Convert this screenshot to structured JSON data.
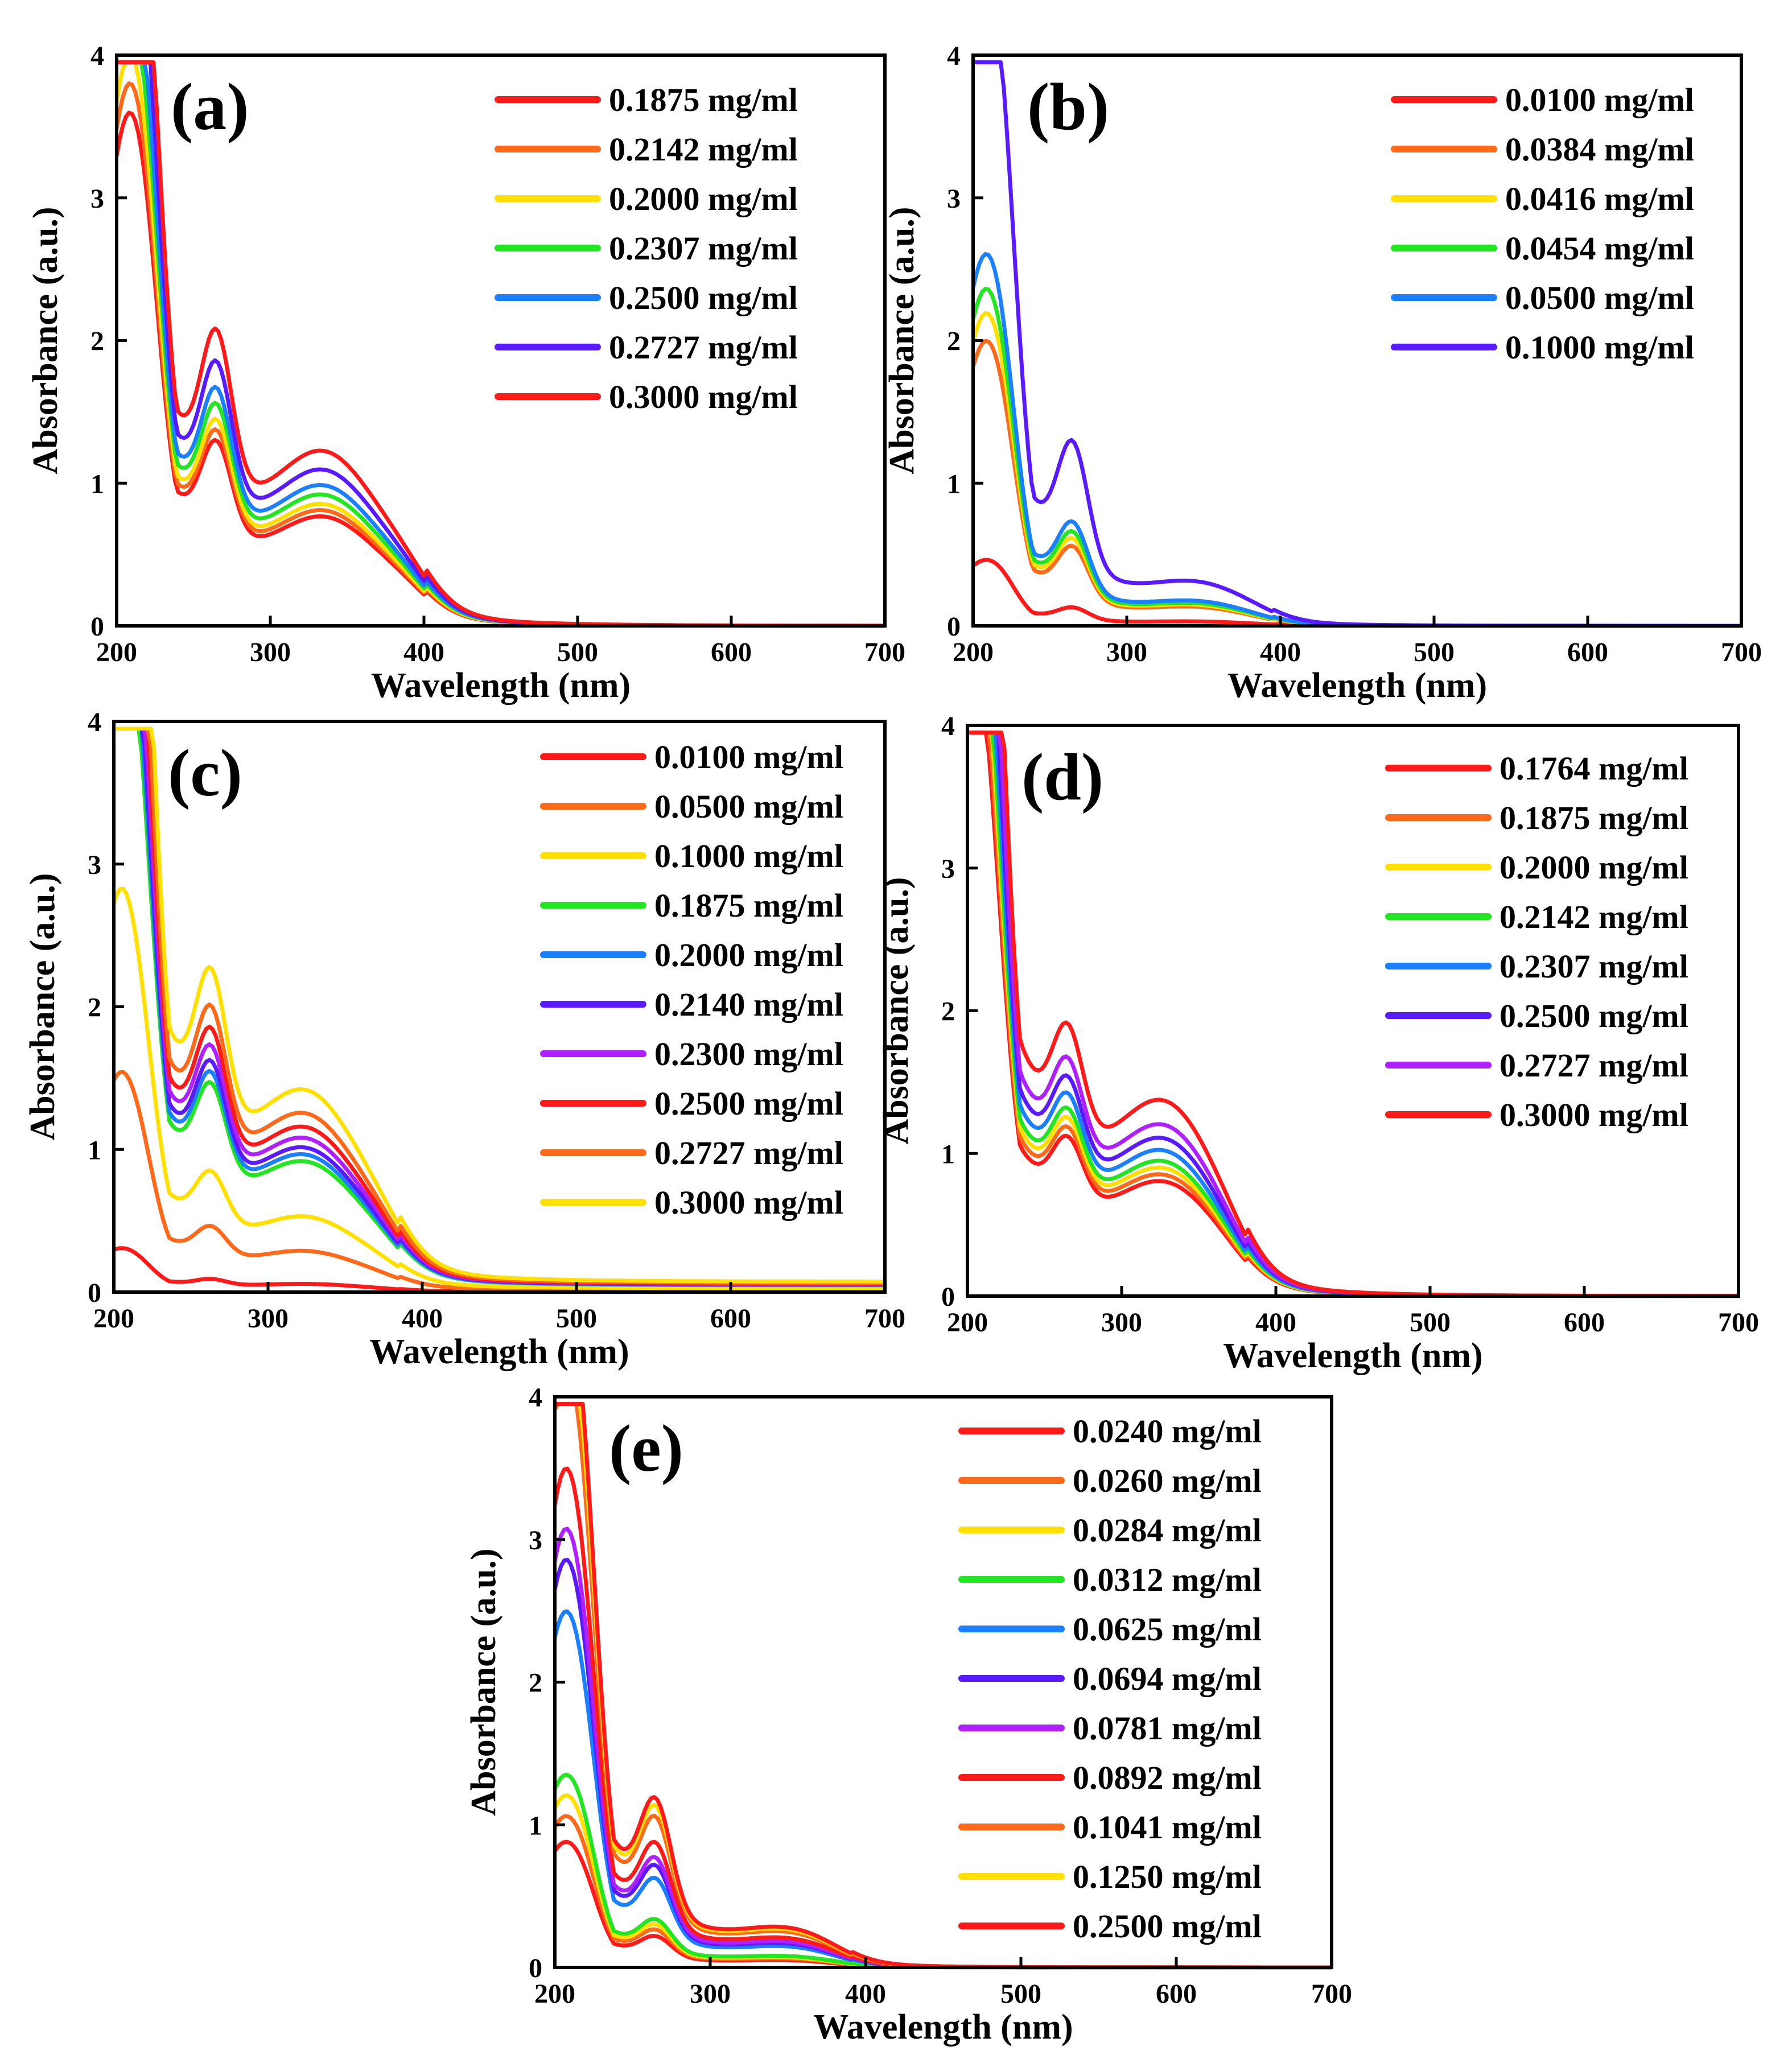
{
  "chart_data": [
    {
      "type": "line",
      "panel_label": "(a)",
      "xlabel": "Wavelength (nm)",
      "ylabel": "Absorbance (a.u.)",
      "xlim": [
        200,
        700
      ],
      "ylim": [
        0,
        4
      ],
      "xticks": [
        200,
        300,
        400,
        500,
        600,
        700
      ],
      "yticks": [
        0,
        1,
        2,
        3,
        4
      ],
      "legend_position": "top-right",
      "series": [
        {
          "name": "0.1875 mg/ml",
          "color": "#ff1a1a",
          "scale": 0.7
        },
        {
          "name": "0.2142 mg/ml",
          "color": "#ff6a1a",
          "scale": 0.74
        },
        {
          "name": "0.2000 mg/ml",
          "color": "#ffe000",
          "scale": 0.78
        },
        {
          "name": "0.2307 mg/ml",
          "color": "#22e622",
          "scale": 0.84
        },
        {
          "name": "0.2500 mg/ml",
          "color": "#1a80ff",
          "scale": 0.9
        },
        {
          "name": "0.2727 mg/ml",
          "color": "#5a1aff",
          "scale": 1.0
        },
        {
          "name": "0.3000 mg/ml",
          "color": "#ff1a1a",
          "scale": 1.12
        }
      ],
      "profile": {
        "peak": 3.97,
        "peak_x": 213,
        "shoulder": 2.05,
        "shoulder_x": 265,
        "band": 1.25,
        "band_x": 335,
        "edge": 400,
        "saturate": true
      }
    },
    {
      "type": "line",
      "panel_label": "(b)",
      "xlabel": "Wavelength (nm)",
      "ylabel": "Absorbance (a.u.)",
      "xlim": [
        200,
        700
      ],
      "ylim": [
        0,
        4
      ],
      "xticks": [
        200,
        300,
        400,
        500,
        600,
        700
      ],
      "yticks": [
        0,
        1,
        2,
        3,
        4
      ],
      "legend_position": "top-right",
      "series": [
        {
          "name": "0.0100 mg/ml",
          "color": "#ff1a1a",
          "scale": 0.19
        },
        {
          "name": "0.0384 mg/ml",
          "color": "#ff6a1a",
          "scale": 0.82
        },
        {
          "name": "0.0416 mg/ml",
          "color": "#ffe000",
          "scale": 0.9
        },
        {
          "name": "0.0454 mg/ml",
          "color": "#22e622",
          "scale": 0.97
        },
        {
          "name": "0.0500 mg/ml",
          "color": "#1a80ff",
          "scale": 1.07
        },
        {
          "name": "0.1000 mg/ml",
          "color": "#5a1aff",
          "scale": 1.9
        }
      ],
      "profile": {
        "peak": 2.05,
        "peak_x": 213,
        "shoulder": 0.95,
        "shoulder_x": 265,
        "band": 0.18,
        "band_x": 345,
        "edge": 395,
        "saturate": true
      }
    },
    {
      "type": "line",
      "panel_label": "(c)",
      "xlabel": "Wavelength (nm)",
      "ylabel": "Absorbance (a.u.)",
      "xlim": [
        200,
        700
      ],
      "ylim": [
        0,
        4
      ],
      "xticks": [
        200,
        300,
        400,
        500,
        600,
        700
      ],
      "yticks": [
        0,
        1,
        2,
        3,
        4
      ],
      "legend_position": "top-right",
      "series": [
        {
          "name": "0.0100 mg/ml",
          "color": "#ff1a1a",
          "scale": 0.06
        },
        {
          "name": "0.0500 mg/ml",
          "color": "#ff6a1a",
          "scale": 0.3
        },
        {
          "name": "0.1000 mg/ml",
          "color": "#ffe000",
          "scale": 0.55
        },
        {
          "name": "0.1875 mg/ml",
          "color": "#22e622",
          "scale": 0.95
        },
        {
          "name": "0.2000 mg/ml",
          "color": "#1a80ff",
          "scale": 1.0
        },
        {
          "name": "0.2140 mg/ml",
          "color": "#5a1aff",
          "scale": 1.05
        },
        {
          "name": "0.2300 mg/ml",
          "color": "#b020ff",
          "scale": 1.12
        },
        {
          "name": "0.2500 mg/ml",
          "color": "#ff1a1a",
          "scale": 1.2
        },
        {
          "name": "0.2727 mg/ml",
          "color": "#ff6a1a",
          "scale": 1.3
        },
        {
          "name": "0.3000 mg/ml",
          "color": "#ffe000",
          "scale": 1.47
        }
      ],
      "profile": {
        "peak": 3.8,
        "peak_x": 210,
        "shoulder": 1.5,
        "shoulder_x": 263,
        "band": 1.03,
        "band_x": 325,
        "edge": 385,
        "saturate": true,
        "tail": 0.05
      }
    },
    {
      "type": "line",
      "panel_label": "(d)",
      "xlabel": "Wavelength (nm)",
      "ylabel": "Absorbance (a.u.)",
      "xlim": [
        200,
        700
      ],
      "ylim": [
        0,
        4
      ],
      "xticks": [
        200,
        300,
        400,
        500,
        600,
        700
      ],
      "yticks": [
        0,
        1,
        2,
        3,
        4
      ],
      "legend_position": "top-right",
      "series": [
        {
          "name": "0.1764 mg/ml",
          "color": "#ff1a1a",
          "scale": 0.85
        },
        {
          "name": "0.1875 mg/ml",
          "color": "#ff6a1a",
          "scale": 0.9
        },
        {
          "name": "0.2000 mg/ml",
          "color": "#ffe000",
          "scale": 0.95
        },
        {
          "name": "0.2142 mg/ml",
          "color": "#22e622",
          "scale": 1.0
        },
        {
          "name": "0.2307 mg/ml",
          "color": "#1a80ff",
          "scale": 1.08
        },
        {
          "name": "0.2500 mg/ml",
          "color": "#5a1aff",
          "scale": 1.17
        },
        {
          "name": "0.2727 mg/ml",
          "color": "#b020ff",
          "scale": 1.27
        },
        {
          "name": "0.3000 mg/ml",
          "color": "#ff1a1a",
          "scale": 1.45
        }
      ],
      "profile": {
        "peak": 3.9,
        "peak_x": 208,
        "shoulder": 1.12,
        "shoulder_x": 265,
        "band": 1.08,
        "band_x": 328,
        "edge": 380,
        "saturate": true
      }
    },
    {
      "type": "line",
      "panel_label": "(e)",
      "xlabel": "Wavelength (nm)",
      "ylabel": "Absorbance (a.u.)",
      "xlim": [
        200,
        700
      ],
      "ylim": [
        0,
        4
      ],
      "xticks": [
        200,
        300,
        400,
        500,
        600,
        700
      ],
      "yticks": [
        0,
        1,
        2,
        3,
        4
      ],
      "legend_position": "top-right",
      "series": [
        {
          "name": "0.0240 mg/ml",
          "color": "#ff1a1a",
          "scale": 0.73
        },
        {
          "name": "0.0260 mg/ml",
          "color": "#ff6a1a",
          "scale": 0.88
        },
        {
          "name": "0.0284 mg/ml",
          "color": "#ffe000",
          "scale": 1.0
        },
        {
          "name": "0.0312 mg/ml",
          "color": "#22e622",
          "scale": 1.12
        },
        {
          "name": "0.0625 mg/ml",
          "color": "#1a80ff",
          "scale": 2.07
        },
        {
          "name": "0.0694 mg/ml",
          "color": "#5a1aff",
          "scale": 2.37
        },
        {
          "name": "0.0781 mg/ml",
          "color": "#b020ff",
          "scale": 2.55
        },
        {
          "name": "0.0892 mg/ml",
          "color": "#ff1a1a",
          "scale": 2.9
        },
        {
          "name": "0.1041 mg/ml",
          "color": "#ff6a1a",
          "scale": 3.5
        },
        {
          "name": "0.1250 mg/ml",
          "color": "#ffe000",
          "scale": 3.75
        },
        {
          "name": "0.2500 mg/ml",
          "color": "#ff1a1a",
          "scale": 3.93
        }
      ],
      "profile": {
        "peak": 1.0,
        "peak_x": 212,
        "shoulder": 0.41,
        "shoulder_x": 265,
        "band": 0.08,
        "band_x": 350,
        "edge": 390,
        "saturate": true
      }
    }
  ]
}
